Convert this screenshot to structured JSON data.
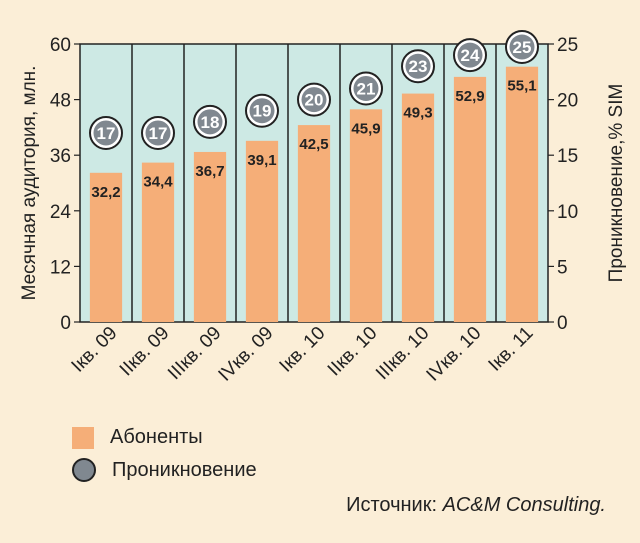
{
  "chart_data": {
    "type": "bar",
    "categories": [
      "Iкв. 09",
      "IIкв. 09",
      "IIIкв. 09",
      "IVкв. 09",
      "Iкв. 10",
      "IIкв. 10",
      "IIIкв. 10",
      "IVкв. 10",
      "Iкв. 11"
    ],
    "series": [
      {
        "name": "Абоненты",
        "values": [
          32.2,
          34.4,
          36.7,
          39.1,
          42.5,
          45.9,
          49.3,
          52.9,
          55.1
        ],
        "labels": [
          "32,2",
          "34,4",
          "36,7",
          "39,1",
          "42,5",
          "45,9",
          "49,3",
          "52,9",
          "55,1"
        ]
      },
      {
        "name": "Проникновение",
        "values": [
          17,
          17,
          18,
          19,
          20,
          21,
          23,
          24,
          25
        ],
        "labels": [
          "17",
          "17",
          "18",
          "19",
          "20",
          "21",
          "23",
          "24",
          "25"
        ]
      }
    ],
    "ylabel": "Месячная аудитория, млн.",
    "y2label": "Проникновение,% SIM",
    "ylim": [
      0,
      60
    ],
    "y2lim": [
      0,
      25
    ],
    "yticks": [
      "0",
      "12",
      "24",
      "36",
      "48",
      "60"
    ],
    "y2ticks": [
      "0",
      "5",
      "10",
      "15",
      "20",
      "25"
    ],
    "grid": false,
    "legend_position": "bottom-left"
  },
  "legend": {
    "subscribers": "Абоненты",
    "penetration": "Проникновение"
  },
  "source": {
    "prefix": "Источник: ",
    "name": "AC&M Consulting."
  },
  "colors": {
    "plot_bg": "#cde9e4",
    "bar": "#f5ae78",
    "marker": "#808890",
    "page_bg": "#fbeed7"
  }
}
